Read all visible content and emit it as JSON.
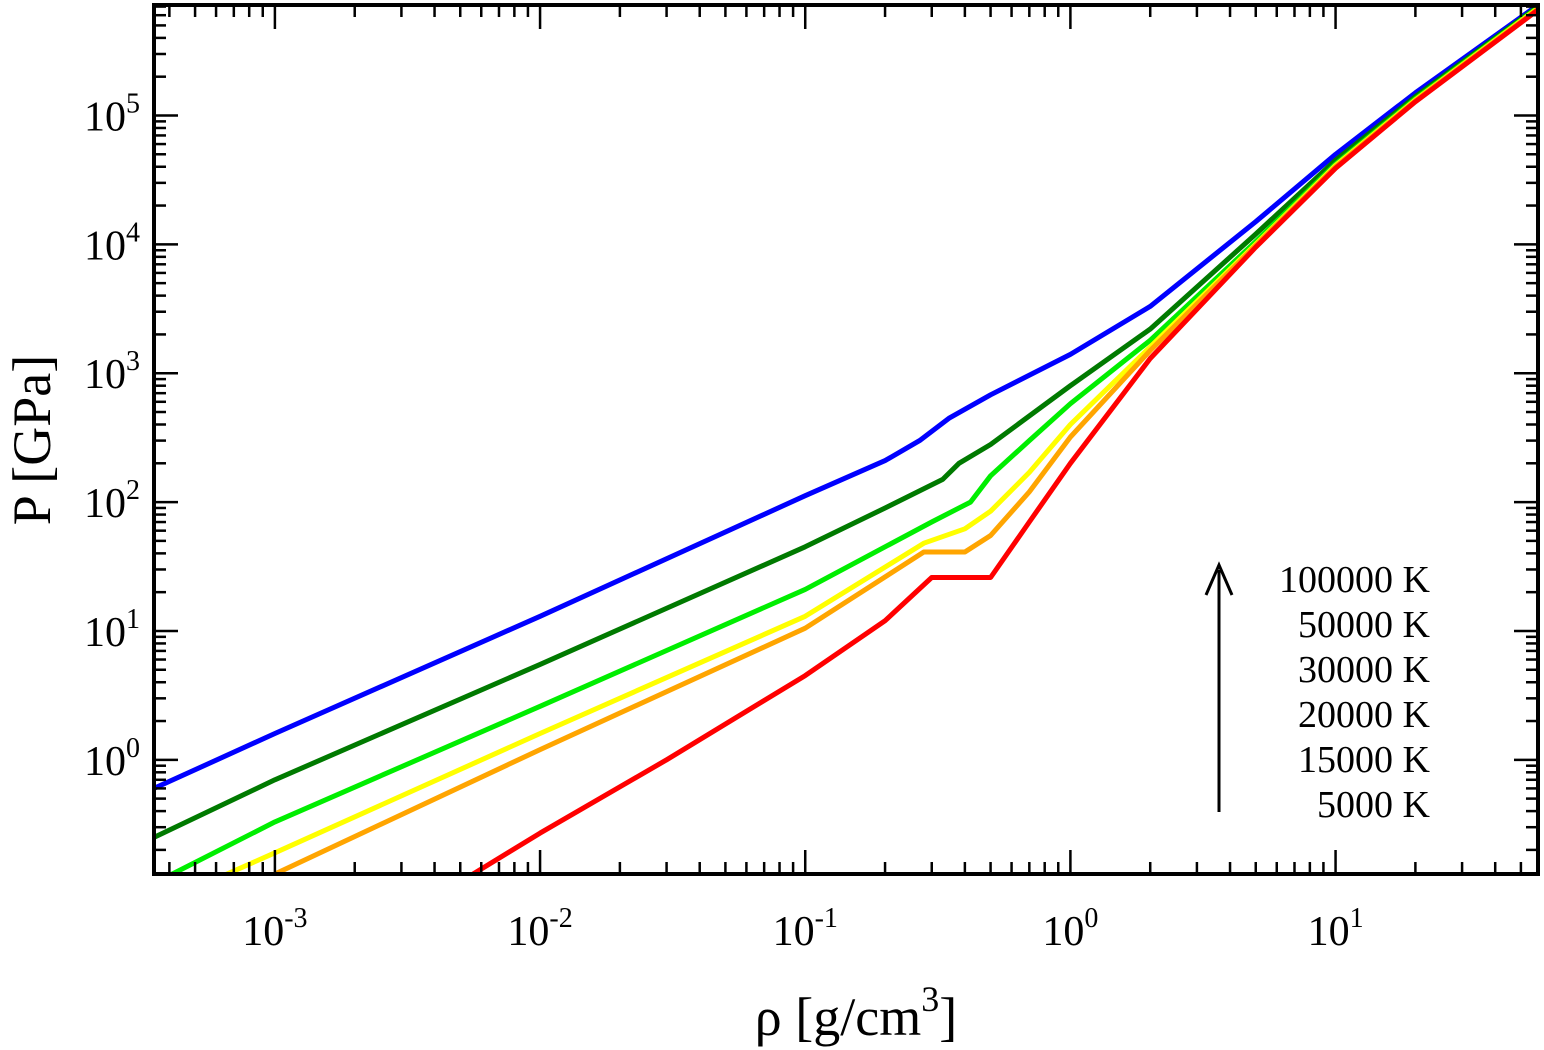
{
  "chart_data": {
    "type": "line",
    "xlabel": "ρ [g/cm",
    "xlabel_sup": "3",
    "xlabel_end": "]",
    "ylabel": "P [GPa]",
    "xscale": "log",
    "yscale": "log",
    "xlim": [
      0.00035,
      58
    ],
    "ylim": [
      0.13,
      720000
    ],
    "grid": false,
    "x_ticks": [
      {
        "base": "10",
        "exp": "-3"
      },
      {
        "base": "10",
        "exp": "-2"
      },
      {
        "base": "10",
        "exp": "-1"
      },
      {
        "base": "10",
        "exp": "0"
      },
      {
        "base": "10",
        "exp": "1"
      }
    ],
    "x_tick_values": [
      0.001,
      0.01,
      0.1,
      1,
      10
    ],
    "y_ticks": [
      {
        "base": "10",
        "exp": "0"
      },
      {
        "base": "10",
        "exp": "1"
      },
      {
        "base": "10",
        "exp": "2"
      },
      {
        "base": "10",
        "exp": "3"
      },
      {
        "base": "10",
        "exp": "4"
      },
      {
        "base": "10",
        "exp": "5"
      }
    ],
    "y_tick_values": [
      1,
      10,
      100,
      1000,
      10000,
      100000
    ],
    "legend": {
      "placement": "right",
      "arrow": "up",
      "labels": [
        "100000 K",
        "50000 K",
        "30000 K",
        "20000 K",
        "15000 K",
        "5000 K"
      ]
    },
    "series": [
      {
        "color": "#0000ff",
        "x": [
          0.00035,
          0.001,
          0.01,
          0.1,
          0.2,
          0.27,
          0.35,
          0.5,
          1,
          2,
          5,
          10,
          20,
          58
        ],
        "y": [
          0.6,
          1.6,
          13,
          112,
          210,
          300,
          450,
          680,
          1400,
          3300,
          15000,
          50000,
          150000,
          720000
        ]
      },
      {
        "color": "#007a00",
        "x": [
          0.00035,
          0.001,
          0.01,
          0.1,
          0.2,
          0.33,
          0.38,
          0.5,
          1,
          2,
          5,
          10,
          20,
          58
        ],
        "y": [
          0.25,
          0.7,
          5.5,
          45,
          90,
          150,
          200,
          280,
          800,
          2200,
          12000,
          45000,
          140000,
          700000
        ]
      },
      {
        "color": "#00ee00",
        "x": [
          0.00035,
          0.001,
          0.01,
          0.1,
          0.3,
          0.42,
          0.5,
          0.7,
          1,
          2,
          5,
          10,
          20,
          58
        ],
        "y": [
          0.11,
          0.33,
          2.6,
          21,
          70,
          100,
          160,
          300,
          580,
          1800,
          10500,
          42000,
          135000,
          690000
        ]
      },
      {
        "color": "#ffff00",
        "x": [
          0.00055,
          0.001,
          0.01,
          0.1,
          0.28,
          0.4,
          0.5,
          0.7,
          1,
          2,
          5,
          10,
          20,
          58
        ],
        "y": [
          0.11,
          0.19,
          1.6,
          13,
          48,
          62,
          85,
          170,
          400,
          1600,
          10000,
          41000,
          132000,
          680000
        ]
      },
      {
        "color": "#ffa500",
        "x": [
          0.00085,
          0.001,
          0.01,
          0.1,
          0.28,
          0.4,
          0.5,
          0.7,
          1,
          2,
          5,
          10,
          20,
          58
        ],
        "y": [
          0.11,
          0.13,
          1.2,
          10.5,
          41,
          41,
          55,
          120,
          320,
          1500,
          9800,
          40000,
          130000,
          670000
        ]
      },
      {
        "color": "#ff0000",
        "x": [
          0.0049,
          0.01,
          0.03,
          0.1,
          0.2,
          0.3,
          0.5,
          0.7,
          1,
          2,
          5,
          10,
          20,
          58
        ],
        "y": [
          0.11,
          0.27,
          1.0,
          4.5,
          12,
          26,
          26,
          70,
          200,
          1300,
          9500,
          39000,
          128000,
          660000
        ]
      }
    ]
  }
}
